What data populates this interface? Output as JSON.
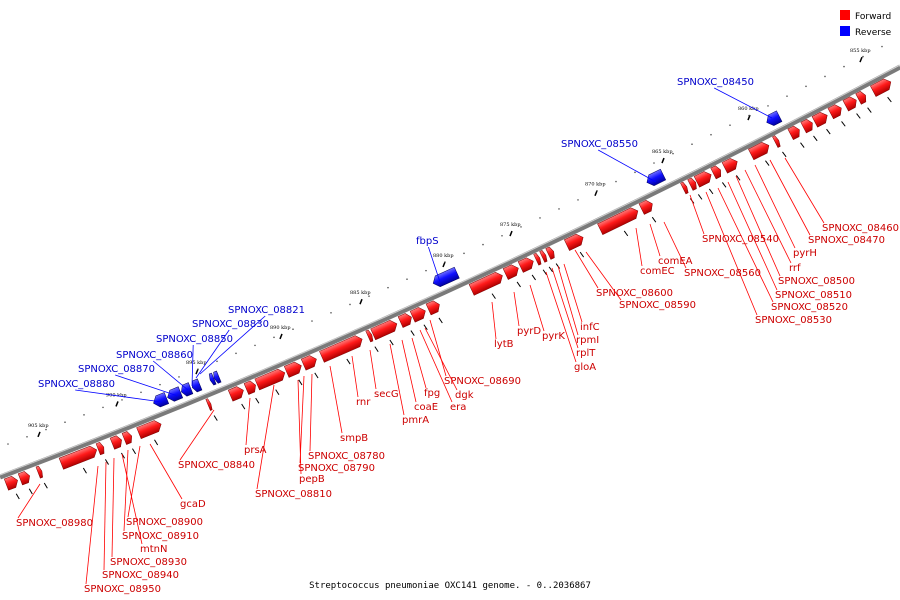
{
  "legend": {
    "forward": {
      "label": "Forward",
      "color": "#ff0000"
    },
    "reverse": {
      "label": "Reverse",
      "color": "#0000ff"
    }
  },
  "caption": "Streptococcus pneumoniae OXC141 genome. - 0..2036867",
  "ticks": [
    "855 kbp",
    "860 kbp",
    "865 kbp",
    "870 kbp",
    "875 kbp",
    "880 kbp",
    "885 kbp",
    "890 kbp",
    "895 kbp",
    "900 kbp",
    "905 kbp"
  ],
  "forward_labels": [
    "SPNOXC_08460",
    "SPNOXC_08470",
    "pyrH",
    "rrf",
    "SPNOXC_08500",
    "SPNOXC_08510",
    "SPNOXC_08520",
    "SPNOXC_08530",
    "SPNOXC_08540",
    "SPNOXC_08560",
    "comEA",
    "comEC",
    "SPNOXC_08600",
    "SPNOXC_08590",
    "infC",
    "rpmI",
    "rplT",
    "gloA",
    "pyrK",
    "pyrD",
    "lytB",
    "SPNOXC_08690",
    "era",
    "dgk",
    "fpg",
    "coaE",
    "pmrA",
    "secG",
    "rnr",
    "smpB",
    "SPNOXC_08780",
    "SPNOXC_08790",
    "pepB",
    "SPNOXC_08810",
    "prsA",
    "SPNOXC_08840",
    "gcaD",
    "SPNOXC_08900",
    "SPNOXC_08910",
    "mtnN",
    "SPNOXC_08930",
    "SPNOXC_08940",
    "SPNOXC_08950",
    "SPNOXC_08980"
  ],
  "reverse_labels": [
    "SPNOXC_08450",
    "SPNOXC_08550",
    "fbpS",
    "SPNOXC_08821",
    "SPNOXC_08830",
    "SPNOXC_08850",
    "SPNOXC_08860",
    "SPNOXC_08870",
    "SPNOXC_08880"
  ]
}
